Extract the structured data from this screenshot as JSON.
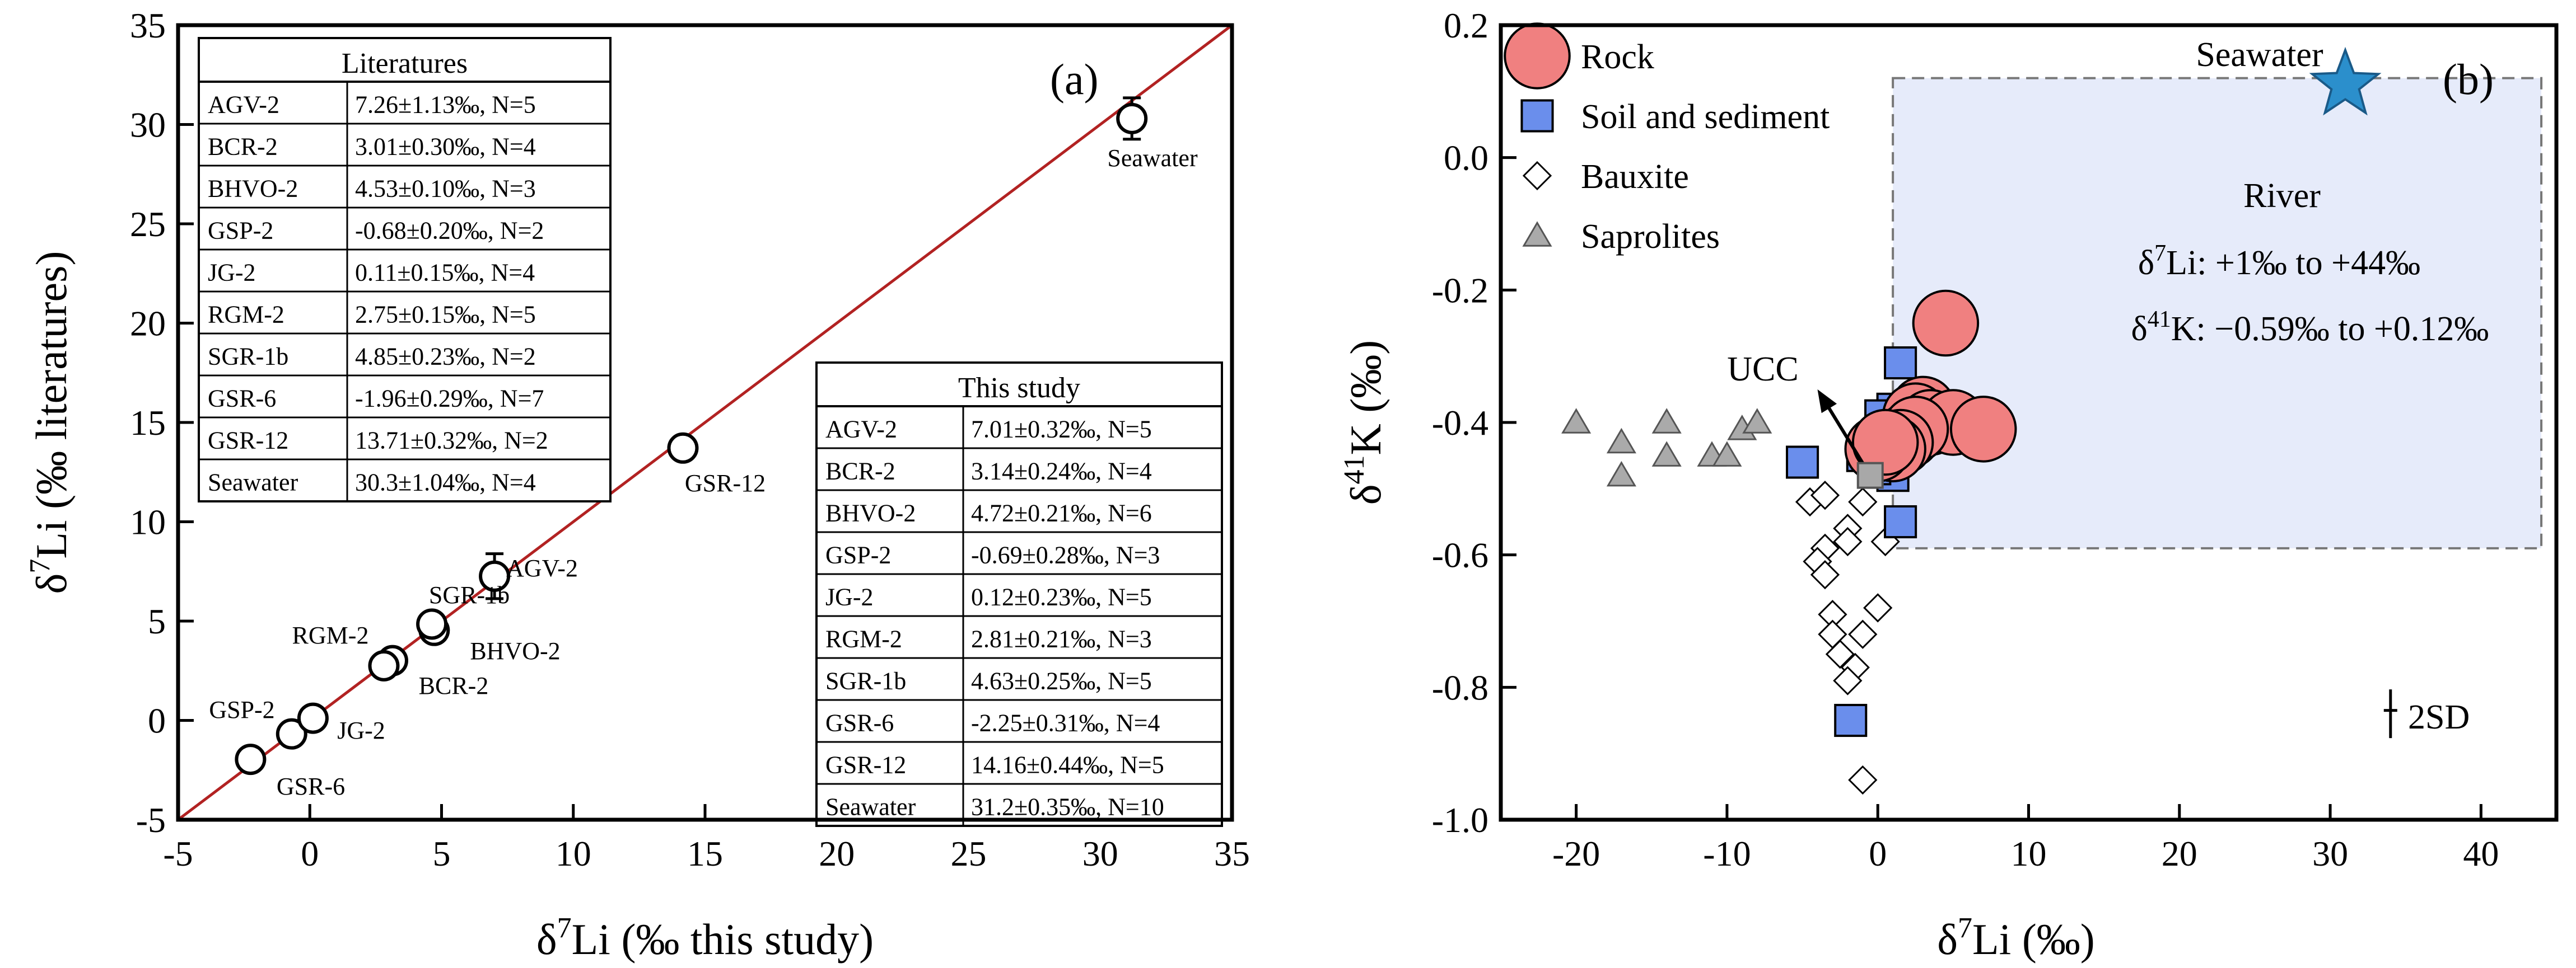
{
  "chart_data": [
    {
      "type": "scatter",
      "panel_label": "(a)",
      "xlabel_prefix": "δ",
      "xlabel_sup": "7",
      "xlabel_rest": "Li (‰ this study)",
      "ylabel_prefix": "δ",
      "ylabel_sup": "7",
      "ylabel_rest": "Li (‰ literatures)",
      "xlim": [
        -5,
        35
      ],
      "ylim": [
        -5,
        35
      ],
      "xticks": [
        -5,
        0,
        5,
        10,
        15,
        20,
        25,
        30,
        35
      ],
      "yticks": [
        -5,
        0,
        5,
        10,
        15,
        20,
        25,
        30,
        35
      ],
      "reference_line": "1:1",
      "points": [
        {
          "name": "AGV-2",
          "x": 7.01,
          "y": 7.26,
          "yerr": 1.13
        },
        {
          "name": "BCR-2",
          "x": 3.14,
          "y": 3.01,
          "yerr": 0.3
        },
        {
          "name": "BHVO-2",
          "x": 4.72,
          "y": 4.53,
          "yerr": 0.1
        },
        {
          "name": "GSP-2",
          "x": -0.69,
          "y": -0.68,
          "yerr": 0.2
        },
        {
          "name": "JG-2",
          "x": 0.12,
          "y": 0.11,
          "yerr": 0.15
        },
        {
          "name": "RGM-2",
          "x": 2.81,
          "y": 2.75,
          "yerr": 0.15
        },
        {
          "name": "SGR-1b",
          "x": 4.63,
          "y": 4.85,
          "yerr": 0.23
        },
        {
          "name": "GSR-6",
          "x": -2.25,
          "y": -1.96,
          "yerr": 0.29
        },
        {
          "name": "GSR-12",
          "x": 14.16,
          "y": 13.71,
          "yerr": 0.32
        },
        {
          "name": "Seawater",
          "x": 31.2,
          "y": 30.3,
          "yerr": 1.04
        }
      ],
      "point_labels": [
        "AGV-2",
        "SGR-1b",
        "RGM-2",
        "BHVO-2",
        "BCR-2",
        "GSP-2",
        "JG-2",
        "GSR-6",
        "GSR-12",
        "Seawater"
      ],
      "literature_table": {
        "title": "Literatures",
        "rows": [
          [
            "AGV-2",
            "7.26±1.13‰, N=5"
          ],
          [
            "BCR-2",
            "3.01±0.30‰, N=4"
          ],
          [
            "BHVO-2",
            "4.53±0.10‰, N=3"
          ],
          [
            "GSP-2",
            "-0.68±0.20‰, N=2"
          ],
          [
            "JG-2",
            "0.11±0.15‰, N=4"
          ],
          [
            "RGM-2",
            "2.75±0.15‰, N=5"
          ],
          [
            "SGR-1b",
            "4.85±0.23‰, N=2"
          ],
          [
            "GSR-6",
            "-1.96±0.29‰, N=7"
          ],
          [
            "GSR-12",
            "13.71±0.32‰, N=2"
          ],
          [
            "Seawater",
            "30.3±1.04‰, N=4"
          ]
        ]
      },
      "study_table": {
        "title": "This study",
        "rows": [
          [
            "AGV-2",
            "7.01±0.32‰, N=5"
          ],
          [
            "BCR-2",
            "3.14±0.24‰, N=4"
          ],
          [
            "BHVO-2",
            "4.72±0.21‰, N=6"
          ],
          [
            "GSP-2",
            "-0.69±0.28‰, N=3"
          ],
          [
            "JG-2",
            "0.12±0.23‰, N=5"
          ],
          [
            "RGM-2",
            "2.81±0.21‰, N=3"
          ],
          [
            "SGR-1b",
            "4.63±0.25‰, N=5"
          ],
          [
            "GSR-6",
            "-2.25±0.31‰, N=4"
          ],
          [
            "GSR-12",
            "14.16±0.44‰, N=5"
          ],
          [
            "Seawater",
            "31.2±0.35‰, N=10"
          ]
        ]
      }
    },
    {
      "type": "scatter",
      "panel_label": "(b)",
      "xlabel_prefix": "δ",
      "xlabel_sup": "7",
      "xlabel_rest": "Li (‰)",
      "ylabel_prefix": "δ",
      "ylabel_sup": "41",
      "ylabel_rest": "K (‰)",
      "xlim": [
        -25,
        45
      ],
      "ylim": [
        -1.0,
        0.2
      ],
      "xticks": [
        -20,
        -10,
        0,
        10,
        20,
        30,
        40
      ],
      "yticks": [
        -1.0,
        -0.8,
        -0.6,
        -0.4,
        -0.2,
        0.0,
        0.2
      ],
      "ytick_labels": [
        "-1.0",
        "-0.8",
        "-0.6",
        "-0.4",
        "-0.2",
        "0.0",
        "0.2"
      ],
      "river_box": {
        "x_range": [
          1,
          44
        ],
        "y_range": [
          -0.59,
          0.12
        ],
        "title": "River",
        "li_prefix": "δ",
        "li_sup": "7",
        "li_text": "Li: +1‰ to +44‰",
        "k_prefix": "δ",
        "k_sup": "41",
        "k_text": "K: −0.59‰ to +0.12‰"
      },
      "seawater": {
        "label": "Seawater",
        "x": 31,
        "y": 0.11
      },
      "ucc": {
        "label": "UCC",
        "x": -0.5,
        "y": -0.48,
        "arrow_to": [
          -4,
          -0.35
        ]
      },
      "error_bar_label": "2SD",
      "error_bar": {
        "x": 34,
        "y": -0.84,
        "err": 0.03
      },
      "series": [
        {
          "name": "Rock",
          "color": "#f08080",
          "marker": "circle",
          "points": [
            [
              4.5,
              -0.25
            ],
            [
              3,
              -0.38
            ],
            [
              2.5,
              -0.39
            ],
            [
              3.5,
              -0.4
            ],
            [
              5,
              -0.4
            ],
            [
              7,
              -0.41
            ],
            [
              2,
              -0.42
            ],
            [
              2.5,
              -0.41
            ],
            [
              1.5,
              -0.43
            ],
            [
              1,
              -0.44
            ],
            [
              0,
              -0.44
            ],
            [
              0.5,
              -0.43
            ]
          ]
        },
        {
          "name": "Soil and sediment",
          "color": "#6a8eec",
          "marker": "square",
          "points": [
            [
              1.5,
              -0.31
            ],
            [
              1,
              -0.38
            ],
            [
              0.2,
              -0.39
            ],
            [
              -1,
              -0.45
            ],
            [
              -5,
              -0.46
            ],
            [
              1,
              -0.48
            ],
            [
              1.5,
              -0.55
            ],
            [
              -0.2,
              -0.47
            ],
            [
              -1.8,
              -0.85
            ]
          ]
        },
        {
          "name": "Bauxite",
          "color": "#ffffff",
          "marker": "diamond",
          "points": [
            [
              -4.5,
              -0.52
            ],
            [
              -3.5,
              -0.51
            ],
            [
              -1,
              -0.52
            ],
            [
              -2,
              -0.56
            ],
            [
              -3.5,
              -0.59
            ],
            [
              -2,
              -0.58
            ],
            [
              -4,
              -0.61
            ],
            [
              -3.5,
              -0.63
            ],
            [
              0.5,
              -0.58
            ],
            [
              0,
              -0.68
            ],
            [
              -3,
              -0.69
            ],
            [
              -3,
              -0.72
            ],
            [
              -1,
              -0.72
            ],
            [
              -2.5,
              -0.75
            ],
            [
              -1.5,
              -0.77
            ],
            [
              -2,
              -0.79
            ],
            [
              -1,
              -0.94
            ]
          ]
        },
        {
          "name": "Saprolites",
          "color": "#aaaaaa",
          "marker": "triangle",
          "points": [
            [
              -20,
              -0.4
            ],
            [
              -17,
              -0.43
            ],
            [
              -14,
              -0.4
            ],
            [
              -17,
              -0.48
            ],
            [
              -14,
              -0.45
            ],
            [
              -11,
              -0.45
            ],
            [
              -10,
              -0.45
            ],
            [
              -9,
              -0.41
            ],
            [
              -8,
              -0.4
            ]
          ]
        }
      ],
      "legend_position": "top-left"
    }
  ]
}
